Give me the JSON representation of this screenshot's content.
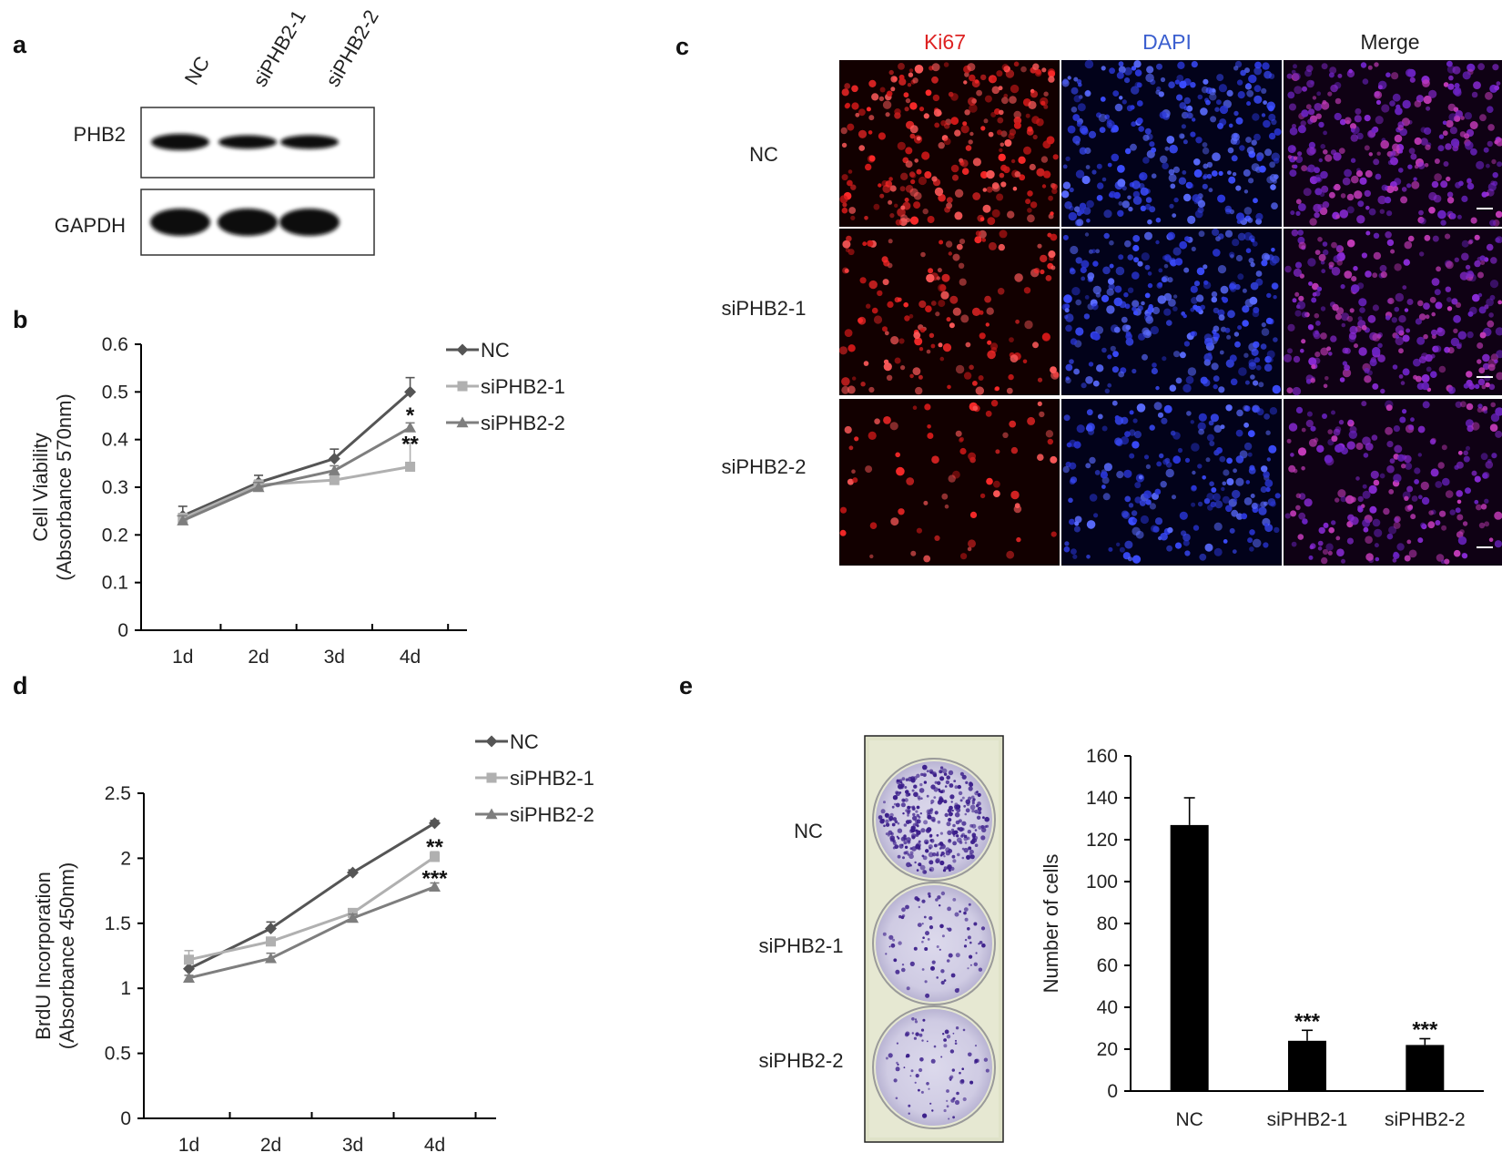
{
  "panels": {
    "a": "a",
    "b": "b",
    "c": "c",
    "d": "d",
    "e": "e"
  },
  "blot": {
    "lanes": [
      "NC",
      "siPHB2-1",
      "siPHB2-2"
    ],
    "rows": [
      {
        "label": "PHB2",
        "intensity": [
          1.0,
          0.62,
          0.66
        ]
      },
      {
        "label": "GAPDH",
        "intensity": [
          1.0,
          1.0,
          1.0
        ]
      }
    ]
  },
  "fluorescence": {
    "channels": [
      {
        "label": "Ki67",
        "color": "#dd2222"
      },
      {
        "label": "DAPI",
        "color": "#3b5fcf"
      },
      {
        "label": "Merge",
        "color": "#222222"
      }
    ],
    "rows": [
      "NC",
      "siPHB2-1",
      "siPHB2-2"
    ]
  },
  "colony": {
    "rows": [
      "NC",
      "siPHB2-1",
      "siPHB2-2"
    ]
  },
  "chart_data": [
    {
      "panel": "b",
      "type": "line",
      "ylabel": "Cell Viability (Absorbance 570nm)",
      "ylabel_lines": [
        "Cell Viability",
        "(Absorbance 570nm)"
      ],
      "categories": [
        "1d",
        "2d",
        "3d",
        "4d"
      ],
      "ylim": [
        0,
        0.6
      ],
      "yticks": [
        0,
        0.1,
        0.2,
        0.3,
        0.4,
        0.5,
        0.6
      ],
      "ytick_labels": [
        "0",
        "0.1",
        "0.2",
        "0.3",
        "0.4",
        "0.5",
        "0.6"
      ],
      "series": [
        {
          "name": "NC",
          "values": [
            0.24,
            0.31,
            0.36,
            0.5
          ],
          "err": [
            0.02,
            0.015,
            0.02,
            0.03
          ],
          "color": "#555555",
          "marker": "diamond"
        },
        {
          "name": "siPHB2-1",
          "values": [
            0.235,
            0.305,
            0.315,
            0.343
          ],
          "err": [
            0.01,
            0.01,
            0.01,
            0.05
          ],
          "color": "#b0b0b0",
          "marker": "square"
        },
        {
          "name": "siPHB2-2",
          "values": [
            0.23,
            0.3,
            0.335,
            0.425
          ],
          "err": [
            0.01,
            0.01,
            0.01,
            0.01
          ],
          "color": "#7e7e7e",
          "marker": "triangle"
        }
      ],
      "annotations": [
        {
          "x": "4d",
          "y": 0.455,
          "text": "*"
        },
        {
          "x": "4d",
          "y": 0.395,
          "text": "**"
        }
      ]
    },
    {
      "panel": "d",
      "type": "line",
      "ylabel": "BrdU Incorporation (Absorbance 450nm)",
      "ylabel_lines": [
        "BrdU Incorporation",
        "(Absorbance 450nm)"
      ],
      "categories": [
        "1d",
        "2d",
        "3d",
        "4d"
      ],
      "ylim": [
        0,
        2.5
      ],
      "yticks": [
        0,
        0.5,
        1,
        1.5,
        2,
        2.5
      ],
      "ytick_labels": [
        "0",
        "0.5",
        "1",
        "1.5",
        "2",
        "2.5"
      ],
      "series": [
        {
          "name": "NC",
          "values": [
            1.15,
            1.46,
            1.89,
            2.27
          ],
          "err": [
            0.04,
            0.05,
            0.02,
            0.02
          ],
          "color": "#555555",
          "marker": "diamond"
        },
        {
          "name": "siPHB2-1",
          "values": [
            1.22,
            1.36,
            1.58,
            2.01
          ],
          "err": [
            0.07,
            0.03,
            0.02,
            0.04
          ],
          "color": "#b0b0b0",
          "marker": "square"
        },
        {
          "name": "siPHB2-2",
          "values": [
            1.08,
            1.23,
            1.54,
            1.78
          ],
          "err": [
            0.02,
            0.04,
            0.03,
            0.03
          ],
          "color": "#7e7e7e",
          "marker": "triangle"
        }
      ],
      "annotations": [
        {
          "x": "4d",
          "y": 2.1,
          "text": "**"
        },
        {
          "x": "4d",
          "y": 1.86,
          "text": "***"
        }
      ]
    },
    {
      "panel": "e",
      "type": "bar",
      "ylabel": "Number of cells",
      "categories": [
        "NC",
        "siPHB2-1",
        "siPHB2-2"
      ],
      "values": [
        127,
        24,
        22
      ],
      "err": [
        13,
        5,
        3
      ],
      "ylim": [
        0,
        160
      ],
      "yticks": [
        0,
        20,
        40,
        60,
        80,
        100,
        120,
        140,
        160
      ],
      "ytick_labels": [
        "0",
        "20",
        "40",
        "60",
        "80",
        "100",
        "120",
        "140",
        "160"
      ],
      "color": "#000000",
      "annotations": [
        {
          "x": "siPHB2-1",
          "text": "***"
        },
        {
          "x": "siPHB2-2",
          "text": "***"
        }
      ]
    }
  ]
}
